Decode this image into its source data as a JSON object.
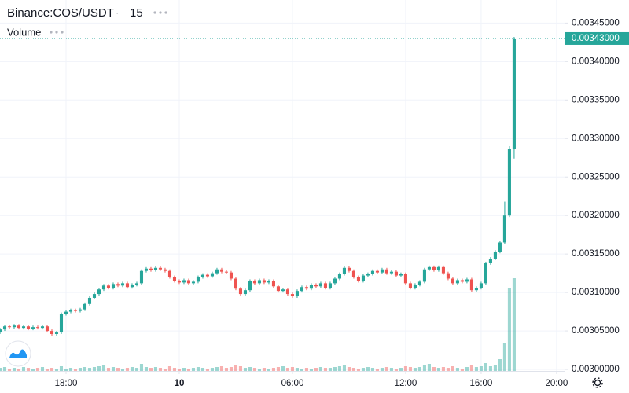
{
  "chart_data": {
    "type": "candlestick",
    "title": "Binance:COS/USDT",
    "interval": "15",
    "volume_label": "Volume",
    "up_color": "#26a69a",
    "down_color": "#ef5350",
    "grid": true,
    "xlim": [
      14.5,
      44.42
    ],
    "xticks": [
      {
        "value": 18,
        "label": "18:00"
      },
      {
        "value": 24,
        "label": "10"
      },
      {
        "value": 30,
        "label": "06:00"
      },
      {
        "value": 36,
        "label": "12:00"
      },
      {
        "value": 40,
        "label": "16:00"
      },
      {
        "value": 44,
        "label": "20:00"
      }
    ],
    "ylim": [
      0.002998,
      0.00348
    ],
    "yticks": [
      {
        "value": 0.003,
        "label": "0.00300000"
      },
      {
        "value": 0.00305,
        "label": "0.00305000"
      },
      {
        "value": 0.0031,
        "label": "0.00310000"
      },
      {
        "value": 0.00315,
        "label": "0.00315000"
      },
      {
        "value": 0.0032,
        "label": "0.00320000"
      },
      {
        "value": 0.00325,
        "label": "0.00325000"
      },
      {
        "value": 0.0033,
        "label": "0.00330000"
      },
      {
        "value": 0.00335,
        "label": "0.00335000"
      },
      {
        "value": 0.0034,
        "label": "0.00340000"
      },
      {
        "value": 0.00345,
        "label": "0.00345000"
      }
    ],
    "last_price": {
      "value": 0.00343,
      "label": "0.00343000"
    },
    "candles": {
      "x": [
        14.5,
        14.75,
        15,
        15.25,
        15.5,
        15.75,
        16,
        16.25,
        16.5,
        16.75,
        17,
        17.25,
        17.5,
        17.75,
        18,
        18.25,
        18.5,
        18.75,
        19,
        19.25,
        19.5,
        19.75,
        20,
        20.25,
        20.5,
        20.75,
        21,
        21.25,
        21.5,
        21.75,
        22,
        22.25,
        22.5,
        22.75,
        23,
        23.25,
        23.5,
        23.75,
        24,
        24.25,
        24.5,
        24.75,
        25,
        25.25,
        25.5,
        25.75,
        26,
        26.25,
        26.5,
        26.75,
        27,
        27.25,
        27.5,
        27.75,
        28,
        28.25,
        28.5,
        28.75,
        29,
        29.25,
        29.5,
        29.75,
        30,
        30.25,
        30.5,
        30.75,
        31,
        31.25,
        31.5,
        31.75,
        32,
        32.25,
        32.5,
        32.75,
        33,
        33.25,
        33.5,
        33.75,
        34,
        34.25,
        34.5,
        34.75,
        35,
        35.25,
        35.5,
        35.75,
        36,
        36.25,
        36.5,
        36.75,
        37,
        37.25,
        37.5,
        37.75,
        38,
        38.25,
        38.5,
        38.75,
        39,
        39.25,
        39.5,
        39.75,
        40,
        40.25,
        40.5,
        40.75,
        41,
        41.25,
        41.5,
        41.75
      ],
      "open": [
        0.003048,
        0.003052,
        0.003056,
        0.003055,
        0.003057,
        0.003054,
        0.003056,
        0.003053,
        0.003055,
        0.003054,
        0.003056,
        0.00305,
        0.003046,
        0.003048,
        0.003072,
        0.003075,
        0.003077,
        0.003076,
        0.003078,
        0.003085,
        0.003093,
        0.003098,
        0.003104,
        0.003109,
        0.003106,
        0.003111,
        0.003109,
        0.003112,
        0.003107,
        0.00311,
        0.003112,
        0.003128,
        0.003131,
        0.003129,
        0.003132,
        0.00313,
        0.003128,
        0.00312,
        0.003115,
        0.003113,
        0.003116,
        0.003112,
        0.003114,
        0.00312,
        0.003123,
        0.003121,
        0.003125,
        0.00313,
        0.003127,
        0.003126,
        0.003118,
        0.003105,
        0.003098,
        0.003103,
        0.003115,
        0.003112,
        0.003116,
        0.003113,
        0.003115,
        0.003108,
        0.003102,
        0.003104,
        0.003098,
        0.003095,
        0.003102,
        0.003107,
        0.003105,
        0.00311,
        0.003108,
        0.003112,
        0.003106,
        0.003112,
        0.003118,
        0.003124,
        0.003132,
        0.003128,
        0.00312,
        0.003115,
        0.003122,
        0.003124,
        0.003128,
        0.003126,
        0.00313,
        0.003125,
        0.003127,
        0.003122,
        0.003124,
        0.003112,
        0.003106,
        0.00311,
        0.003114,
        0.00313,
        0.003133,
        0.003129,
        0.003133,
        0.003125,
        0.003118,
        0.003112,
        0.003116,
        0.003114,
        0.003117,
        0.003103,
        0.003106,
        0.003112,
        0.003138,
        0.003144,
        0.003153,
        0.003165,
        0.0032,
        0.003286
      ],
      "high": [
        0.003054,
        0.003058,
        0.003058,
        0.003059,
        0.003059,
        0.003058,
        0.003058,
        0.003057,
        0.003057,
        0.003058,
        0.003058,
        0.003052,
        0.00305,
        0.003074,
        0.003077,
        0.003079,
        0.003079,
        0.00308,
        0.003087,
        0.003095,
        0.0031,
        0.003106,
        0.003111,
        0.003111,
        0.003113,
        0.003113,
        0.003114,
        0.003114,
        0.003112,
        0.003114,
        0.00313,
        0.003133,
        0.003133,
        0.003134,
        0.003134,
        0.003132,
        0.00313,
        0.003122,
        0.003117,
        0.003118,
        0.003118,
        0.003116,
        0.003122,
        0.003125,
        0.003125,
        0.003127,
        0.003132,
        0.003132,
        0.003129,
        0.003128,
        0.00312,
        0.003107,
        0.003105,
        0.003117,
        0.003117,
        0.003118,
        0.003118,
        0.003117,
        0.003117,
        0.00311,
        0.003106,
        0.003106,
        0.0031,
        0.003104,
        0.003109,
        0.003109,
        0.003112,
        0.003112,
        0.003114,
        0.003114,
        0.003114,
        0.00312,
        0.003126,
        0.003134,
        0.003134,
        0.00313,
        0.003122,
        0.003124,
        0.003126,
        0.00313,
        0.00313,
        0.003132,
        0.003132,
        0.003129,
        0.003129,
        0.003126,
        0.003126,
        0.003114,
        0.003112,
        0.003116,
        0.003132,
        0.003135,
        0.003135,
        0.003135,
        0.003135,
        0.003127,
        0.00312,
        0.003118,
        0.003118,
        0.003119,
        0.003119,
        0.003108,
        0.003114,
        0.00314,
        0.003146,
        0.003155,
        0.003167,
        0.003218,
        0.00329,
        0.003432
      ],
      "low": [
        0.003046,
        0.00305,
        0.003053,
        0.003053,
        0.003052,
        0.003052,
        0.003051,
        0.003051,
        0.003052,
        0.003052,
        0.003048,
        0.003044,
        0.003044,
        0.003046,
        0.00307,
        0.003073,
        0.003074,
        0.003074,
        0.003076,
        0.003083,
        0.003091,
        0.003096,
        0.003102,
        0.003104,
        0.003104,
        0.003107,
        0.003107,
        0.003105,
        0.003105,
        0.003108,
        0.00311,
        0.003126,
        0.003127,
        0.003127,
        0.003128,
        0.003126,
        0.003118,
        0.003113,
        0.003111,
        0.003111,
        0.00311,
        0.00311,
        0.003112,
        0.003118,
        0.003119,
        0.003119,
        0.003123,
        0.003125,
        0.003124,
        0.003116,
        0.003103,
        0.003096,
        0.003096,
        0.003101,
        0.00311,
        0.00311,
        0.003111,
        0.003111,
        0.003106,
        0.0031,
        0.0031,
        0.003096,
        0.003093,
        0.003093,
        0.0031,
        0.003103,
        0.003103,
        0.003106,
        0.003106,
        0.003104,
        0.003104,
        0.00311,
        0.003116,
        0.003122,
        0.003126,
        0.003118,
        0.003113,
        0.003113,
        0.00312,
        0.003122,
        0.003124,
        0.003124,
        0.003123,
        0.003123,
        0.00312,
        0.00312,
        0.00311,
        0.003104,
        0.003104,
        0.003108,
        0.003112,
        0.003128,
        0.003127,
        0.003127,
        0.003123,
        0.003116,
        0.00311,
        0.00311,
        0.003112,
        0.003112,
        0.003101,
        0.003101,
        0.003104,
        0.00311,
        0.003136,
        0.003142,
        0.003151,
        0.003163,
        0.003198,
        0.003274
      ],
      "close": [
        0.003052,
        0.003056,
        0.003055,
        0.003057,
        0.003054,
        0.003056,
        0.003053,
        0.003055,
        0.003054,
        0.003056,
        0.00305,
        0.003046,
        0.003048,
        0.003072,
        0.003075,
        0.003077,
        0.003076,
        0.003078,
        0.003085,
        0.003093,
        0.003098,
        0.003104,
        0.003109,
        0.003106,
        0.003111,
        0.003109,
        0.003112,
        0.003107,
        0.00311,
        0.003112,
        0.003128,
        0.003131,
        0.003129,
        0.003132,
        0.00313,
        0.003128,
        0.00312,
        0.003115,
        0.003113,
        0.003116,
        0.003112,
        0.003114,
        0.00312,
        0.003123,
        0.003121,
        0.003125,
        0.00313,
        0.003127,
        0.003126,
        0.003118,
        0.003105,
        0.003098,
        0.003103,
        0.003115,
        0.003112,
        0.003116,
        0.003113,
        0.003115,
        0.003108,
        0.003102,
        0.003104,
        0.003098,
        0.003095,
        0.003102,
        0.003107,
        0.003105,
        0.00311,
        0.003108,
        0.003112,
        0.003106,
        0.003112,
        0.003118,
        0.003124,
        0.003132,
        0.003128,
        0.00312,
        0.003115,
        0.003122,
        0.003124,
        0.003128,
        0.003126,
        0.00313,
        0.003125,
        0.003127,
        0.003122,
        0.003124,
        0.003112,
        0.003106,
        0.00311,
        0.003114,
        0.00313,
        0.003133,
        0.003129,
        0.003133,
        0.003125,
        0.003118,
        0.003112,
        0.003116,
        0.003114,
        0.003117,
        0.003103,
        0.003106,
        0.003112,
        0.003138,
        0.003144,
        0.003153,
        0.003165,
        0.0032,
        0.003286,
        0.00343
      ],
      "volume": [
        4,
        5,
        3,
        4,
        3,
        5,
        4,
        3,
        4,
        5,
        3,
        4,
        3,
        6,
        3,
        4,
        3,
        4,
        5,
        4,
        5,
        6,
        8,
        4,
        5,
        4,
        3,
        4,
        5,
        4,
        9,
        5,
        4,
        5,
        4,
        3,
        6,
        4,
        3,
        4,
        3,
        4,
        5,
        4,
        3,
        4,
        5,
        6,
        4,
        5,
        8,
        6,
        4,
        5,
        4,
        3,
        4,
        3,
        4,
        5,
        6,
        4,
        5,
        4,
        3,
        4,
        3,
        4,
        5,
        4,
        4,
        5,
        6,
        8,
        5,
        4,
        3,
        4,
        5,
        4,
        3,
        4,
        5,
        4,
        3,
        4,
        6,
        5,
        4,
        5,
        8,
        9,
        5,
        4,
        5,
        4,
        6,
        4,
        3,
        5,
        7,
        5,
        6,
        10,
        6,
        8,
        15,
        35,
        105,
        118
      ]
    }
  }
}
